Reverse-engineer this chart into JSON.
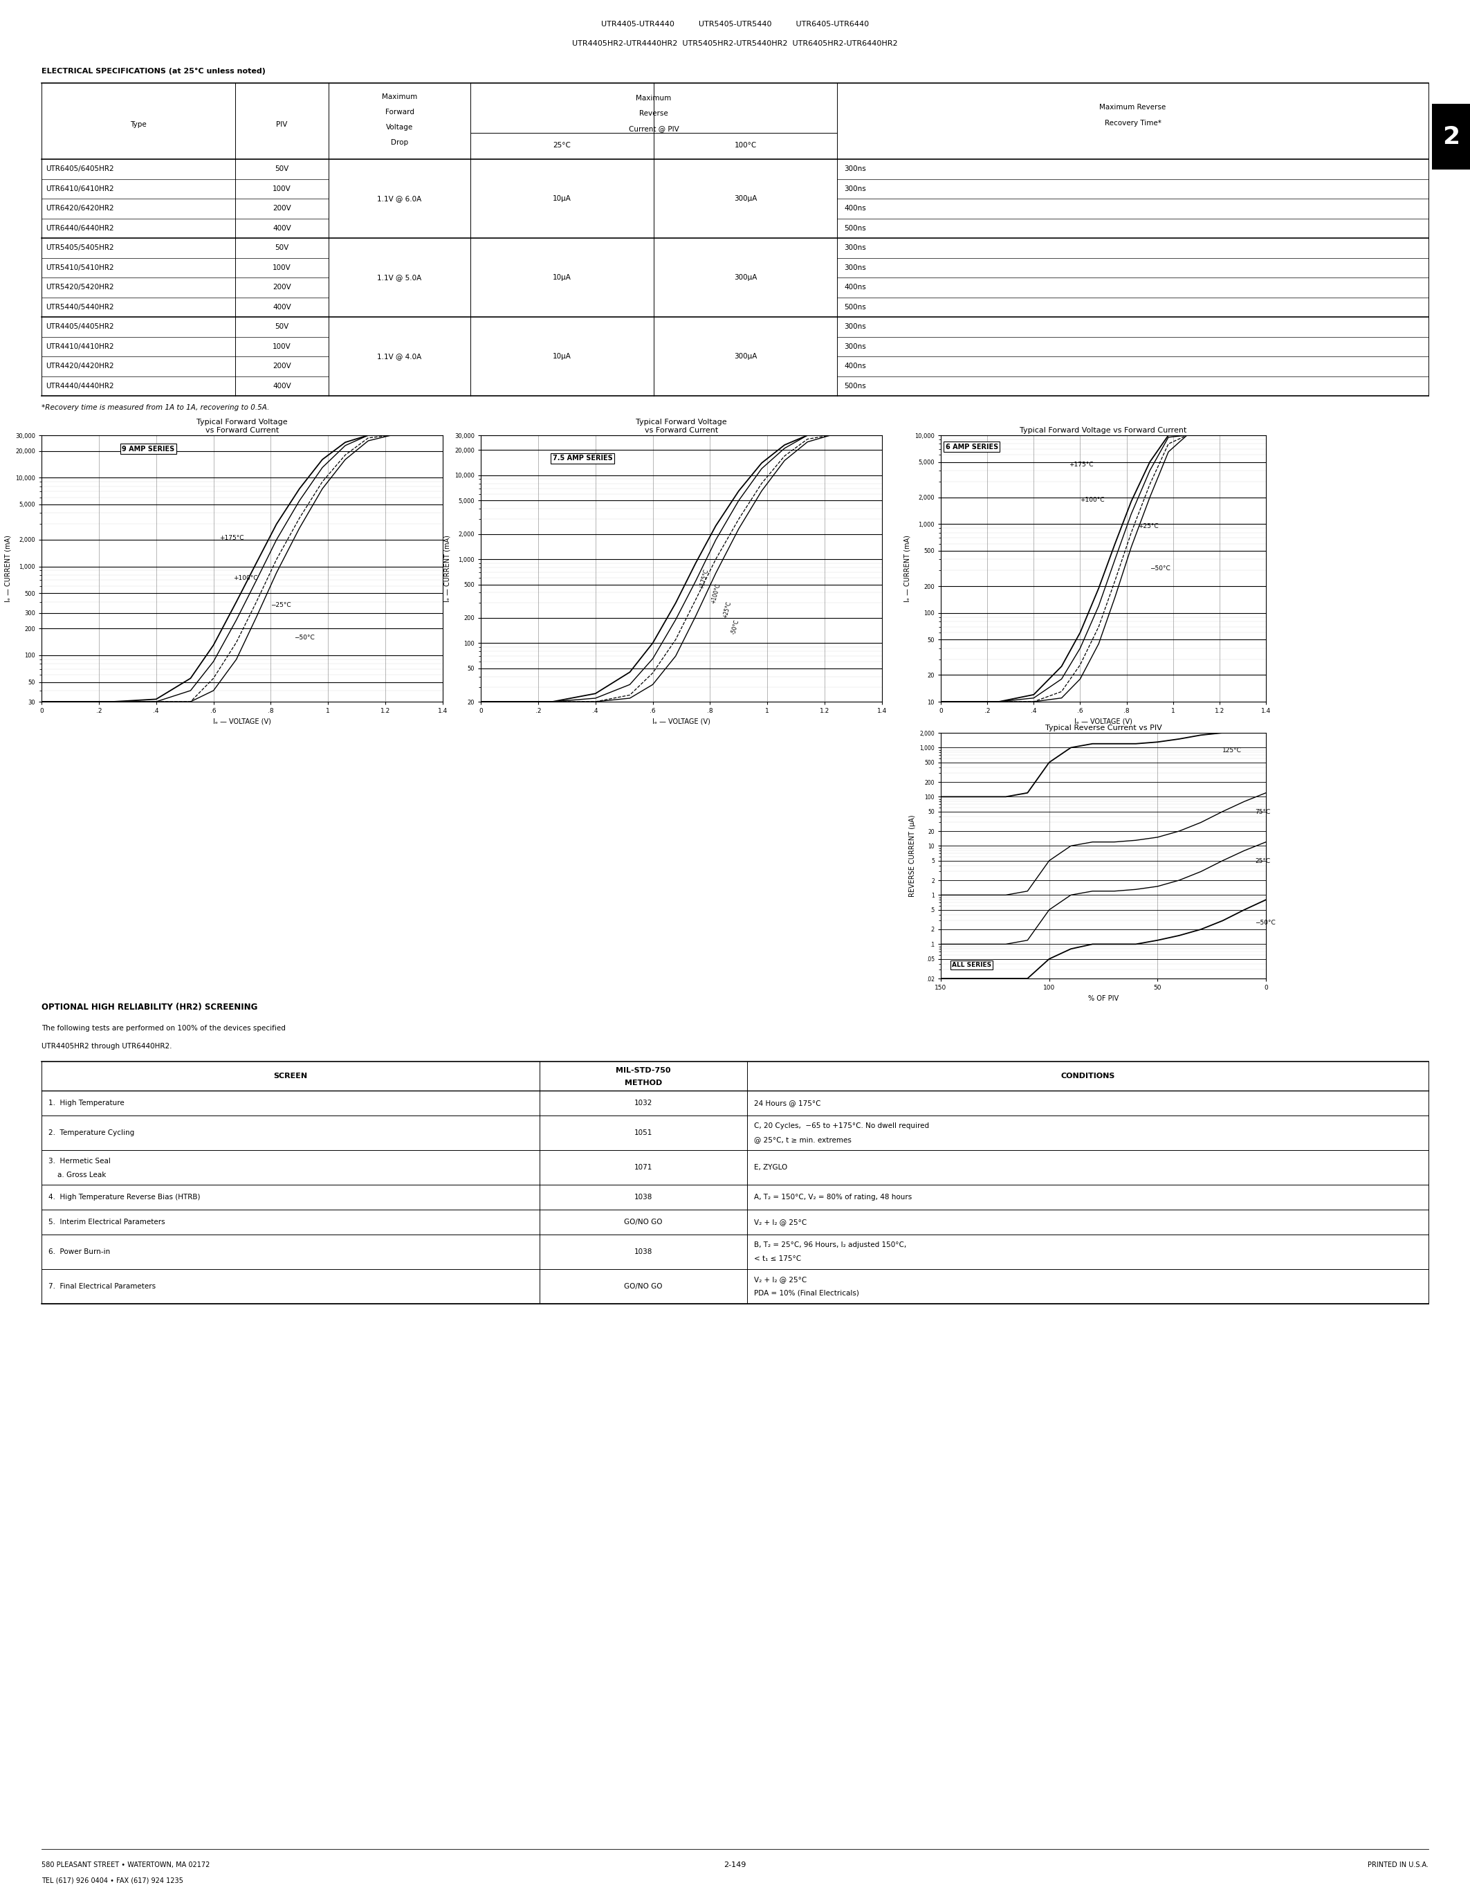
{
  "page_title_lines": [
    "UTR4405-UTR4440          UTR5405-UTR5440          UTR6405-UTR6440",
    "UTR4405HR2-UTR4440HR2  UTR5405HR2-UTR5440HR2  UTR6405HR2-UTR6440HR2"
  ],
  "section_label": "ELECTRICAL SPECIFICATIONS (at 25°C unless noted)",
  "table_rows": [
    [
      "UTR6405/6405HR2",
      "50V",
      "",
      "",
      "",
      "300ns"
    ],
    [
      "UTR6410/6410HR2",
      "100V",
      "1.1V @ 6.0A",
      "10μA",
      "300μA",
      "300ns"
    ],
    [
      "UTR6420/6420HR2",
      "200V",
      "",
      "",
      "",
      "400ns"
    ],
    [
      "UTR6440/6440HR2",
      "400V",
      "",
      "",
      "",
      "500ns"
    ],
    [
      "UTR5405/5405HR2",
      "50V",
      "",
      "",
      "",
      "300ns"
    ],
    [
      "UTR5410/5410HR2",
      "100V",
      "1.1V @ 5.0A",
      "10μA",
      "300μA",
      "300ns"
    ],
    [
      "UTR5420/5420HR2",
      "200V",
      "",
      "",
      "",
      "400ns"
    ],
    [
      "UTR5440/5440HR2",
      "400V",
      "",
      "",
      "",
      "500ns"
    ],
    [
      "UTR4405/4405HR2",
      "50V",
      "",
      "",
      "",
      "300ns"
    ],
    [
      "UTR4410/4410HR2",
      "100V",
      "1.1V @ 4.0A",
      "10μA",
      "300μA",
      "300ns"
    ],
    [
      "UTR4420/4420HR2",
      "200V",
      "",
      "",
      "",
      "400ns"
    ],
    [
      "UTR4440/4440HR2",
      "400V",
      "",
      "",
      "",
      "500ns"
    ]
  ],
  "table_note": "*Recovery time is measured from 1A to 1A, recovering to 0.5A.",
  "opt_title": "OPTIONAL HIGH RELIABILITY (HR2) SCREENING",
  "opt_line1": "The following tests are performed on 100% of the devices specified",
  "opt_line2": "UTR4405HR2 through UTR6440HR2.",
  "screen_rows": [
    [
      "1.  High Temperature",
      "1032",
      "24 Hours @ 175°C",
      ""
    ],
    [
      "2.  Temperature Cycling",
      "1051",
      "C, 20 Cycles,  −65 to +175°C. No dwell required",
      "@ 25°C, t ≥ min. extremes"
    ],
    [
      "3.  Hermetic Seal\n    a. Gross Leak",
      "1071",
      "E, ZYGLO",
      ""
    ],
    [
      "4.  High Temperature Reverse Bias (HTRB)",
      "1038",
      "A, T₂ = 150°C, V₂ = 80% of rating, 48 hours",
      ""
    ],
    [
      "5.  Interim Electrical Parameters",
      "GO/NO GO",
      "V₂ + I₂ @ 25°C",
      ""
    ],
    [
      "6.  Power Burn-in",
      "1038",
      "B, T₂ = 25°C, 96 Hours, I₂ adjusted 150°C,",
      "< t₁ ≤ 175°C"
    ],
    [
      "7.  Final Electrical Parameters",
      "GO/NO GO",
      "V₂ + I₂ @ 25°C",
      "PDA = 10% (Final Electricals)"
    ]
  ],
  "footer_left": "580 PLEASANT STREET • WATERTOWN, MA 02172\nTEL (617) 926 0404 • FAX (617) 924 1235",
  "footer_center": "2-149",
  "footer_right": "PRINTED IN U.S.A."
}
